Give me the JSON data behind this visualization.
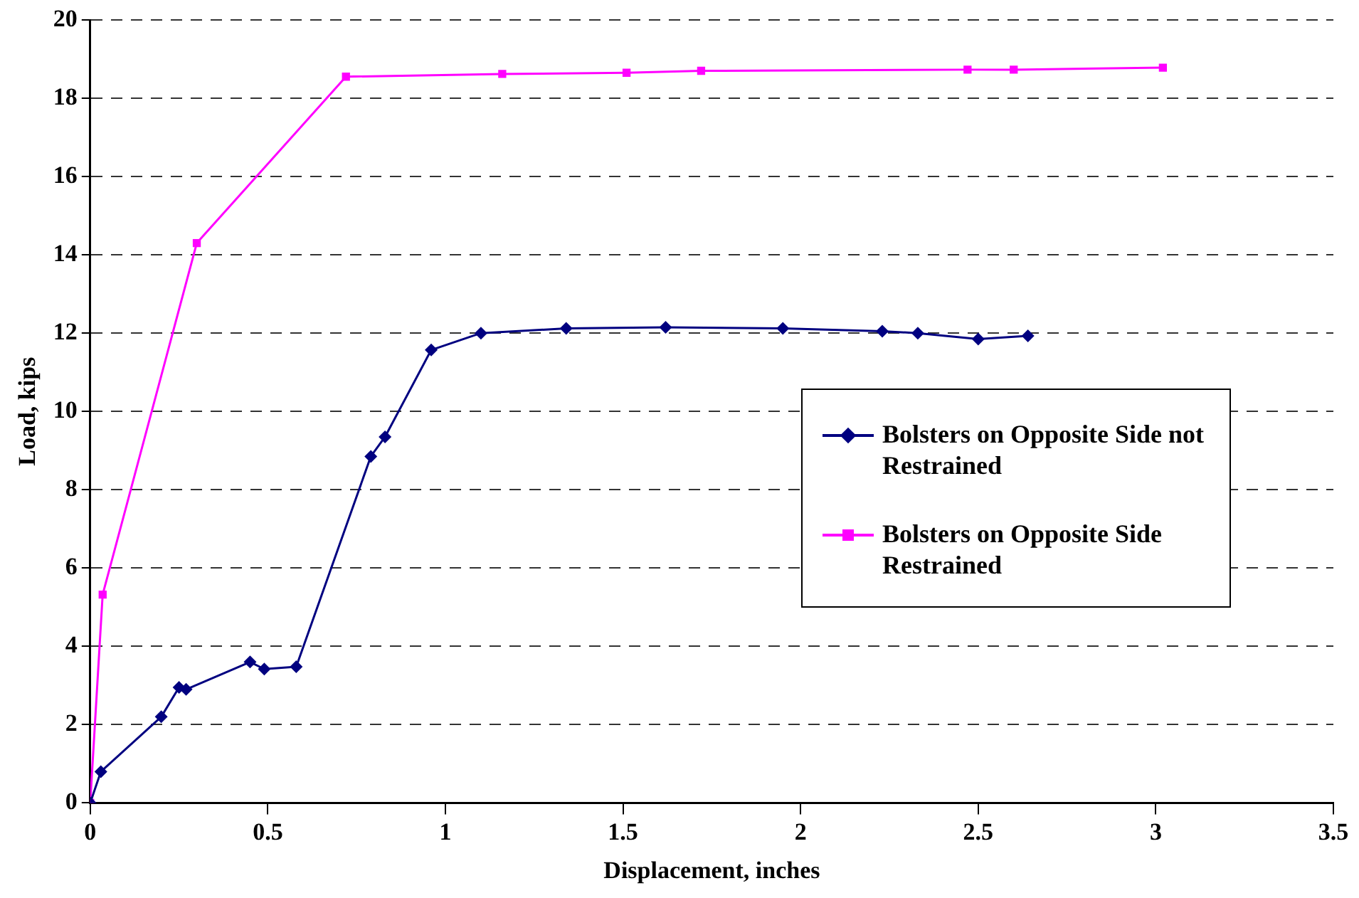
{
  "chart_data": {
    "type": "line",
    "xlabel": "Displacement, inches",
    "ylabel": "Load, kips",
    "xlim": [
      0,
      3.5
    ],
    "xticks": [
      0,
      0.5,
      1,
      1.5,
      2,
      2.5,
      3,
      3.5
    ],
    "ylim": [
      0,
      20
    ],
    "yticks": [
      0,
      2,
      4,
      6,
      8,
      10,
      12,
      14,
      16,
      18,
      20
    ],
    "grid": "y",
    "legend": "right",
    "line_style": "solid",
    "series": [
      {
        "name": "Bolsters on Opposite Side not Restrained",
        "color": "#000080",
        "marker": "diamond",
        "x": [
          0,
          0.03,
          0.2,
          0.25,
          0.27,
          0.45,
          0.49,
          0.58,
          0.79,
          0.83,
          0.96,
          1.1,
          1.34,
          1.62,
          1.95,
          2.23,
          2.33,
          2.5,
          2.64
        ],
        "values": [
          0,
          0.8,
          2.2,
          2.95,
          2.9,
          3.6,
          3.42,
          3.48,
          8.85,
          9.35,
          11.57,
          12.0,
          12.12,
          12.15,
          12.12,
          12.05,
          12.0,
          11.85,
          11.93
        ]
      },
      {
        "name": "Bolsters on Opposite Side Restrained",
        "color": "#ff00ff",
        "marker": "square",
        "x": [
          0,
          0.035,
          0.3,
          0.72,
          1.16,
          1.51,
          1.72,
          2.47,
          2.6,
          3.02
        ],
        "values": [
          0,
          5.32,
          14.3,
          18.55,
          18.62,
          18.65,
          18.7,
          18.73,
          18.73,
          18.78
        ]
      }
    ]
  }
}
